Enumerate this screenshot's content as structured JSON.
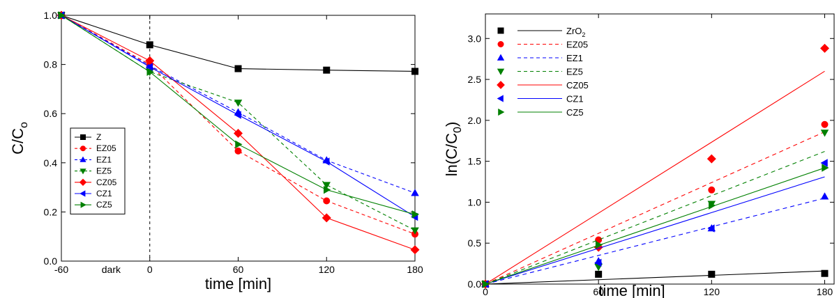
{
  "chart_data": [
    {
      "type": "line",
      "xlabel": "time [min]",
      "ylabel": "C/C",
      "ylabel_sub": "o",
      "xlim": [
        -60,
        180
      ],
      "ylim": [
        0.0,
        1.0
      ],
      "x_ticks": [
        -60,
        0,
        60,
        120,
        180
      ],
      "y_ticks": [
        0.0,
        0.2,
        0.4,
        0.6,
        0.8,
        1.0
      ],
      "x_tick_labels": [
        "-60",
        "0",
        "60",
        "120",
        "180"
      ],
      "y_tick_labels": [
        "0.0",
        "0.2",
        "0.4",
        "0.6",
        "0.8",
        "1.0"
      ],
      "annotation": "dark",
      "vline_x": 0,
      "legend_position": "bottom-left",
      "x": [
        -60,
        0,
        60,
        120,
        180
      ],
      "series": [
        {
          "name": "Z",
          "values": [
            1.0,
            0.88,
            0.783,
            0.777,
            0.772
          ],
          "color": "#000000",
          "marker": "square",
          "dash": false
        },
        {
          "name": "EZ05",
          "values": [
            1.0,
            0.8,
            0.448,
            0.245,
            0.11
          ],
          "color": "#ff0000",
          "marker": "circle",
          "dash": true
        },
        {
          "name": "EZ1",
          "values": [
            1.0,
            0.795,
            0.605,
            0.41,
            0.277
          ],
          "color": "#0000ff",
          "marker": "triangle-up",
          "dash": true
        },
        {
          "name": "EZ5",
          "values": [
            1.0,
            0.77,
            0.645,
            0.31,
            0.125
          ],
          "color": "#008000",
          "marker": "triangle-down",
          "dash": true
        },
        {
          "name": "CZ05",
          "values": [
            1.0,
            0.815,
            0.52,
            0.176,
            0.046
          ],
          "color": "#ff0000",
          "marker": "diamond",
          "dash": false
        },
        {
          "name": "CZ1",
          "values": [
            1.0,
            0.79,
            0.595,
            0.405,
            0.18
          ],
          "color": "#0000ff",
          "marker": "triangle-left",
          "dash": false
        },
        {
          "name": "CZ5",
          "values": [
            1.0,
            0.77,
            0.475,
            0.29,
            0.19
          ],
          "color": "#008000",
          "marker": "triangle-right",
          "dash": false
        }
      ]
    },
    {
      "type": "scatter",
      "xlabel": "time [min]",
      "ylabel": "ln(C/C",
      "ylabel_sub": "0",
      "ylabel_end": ")",
      "xlim": [
        0,
        185
      ],
      "ylim": [
        0.0,
        3.3
      ],
      "x_ticks": [
        0,
        60,
        120,
        180
      ],
      "y_ticks": [
        0.0,
        0.5,
        1.0,
        1.5,
        2.0,
        2.5,
        3.0
      ],
      "x_tick_labels": [
        "0",
        "60",
        "120",
        "180"
      ],
      "y_tick_labels": [
        "0.0",
        "0.5",
        "1.0",
        "1.5",
        "2.0",
        "2.5",
        "3.0"
      ],
      "legend_position": "top-left",
      "x": [
        0,
        60,
        120,
        180
      ],
      "series": [
        {
          "name": "ZrO",
          "name_sub": "2",
          "values": [
            0.0,
            0.12,
            0.12,
            0.13
          ],
          "fit_end": 0.16,
          "color": "#000000",
          "marker": "square",
          "dash": false
        },
        {
          "name": "EZ05",
          "values": [
            0.0,
            0.54,
            1.15,
            1.95
          ],
          "fit_end": 1.86,
          "color": "#ff0000",
          "marker": "circle",
          "dash": true
        },
        {
          "name": "EZ1",
          "values": [
            0.0,
            0.28,
            0.68,
            1.07
          ],
          "fit_end": 1.05,
          "color": "#0000ff",
          "marker": "triangle-up",
          "dash": true
        },
        {
          "name": "EZ5",
          "values": [
            0.0,
            0.21,
            0.98,
            1.85
          ],
          "fit_end": 1.62,
          "color": "#008000",
          "marker": "triangle-down",
          "dash": true
        },
        {
          "name": "CZ05",
          "values": [
            0.0,
            0.45,
            1.53,
            2.88
          ],
          "fit_end": 2.6,
          "color": "#ff0000",
          "marker": "diamond",
          "dash": false
        },
        {
          "name": "CZ1",
          "values": [
            0.0,
            0.26,
            0.68,
            1.48
          ],
          "fit_end": 1.31,
          "color": "#0000ff",
          "marker": "triangle-left",
          "dash": false
        },
        {
          "name": "CZ5",
          "values": [
            0.0,
            0.48,
            0.96,
            1.42
          ],
          "fit_end": 1.42,
          "color": "#008000",
          "marker": "triangle-right",
          "dash": false
        }
      ]
    }
  ]
}
